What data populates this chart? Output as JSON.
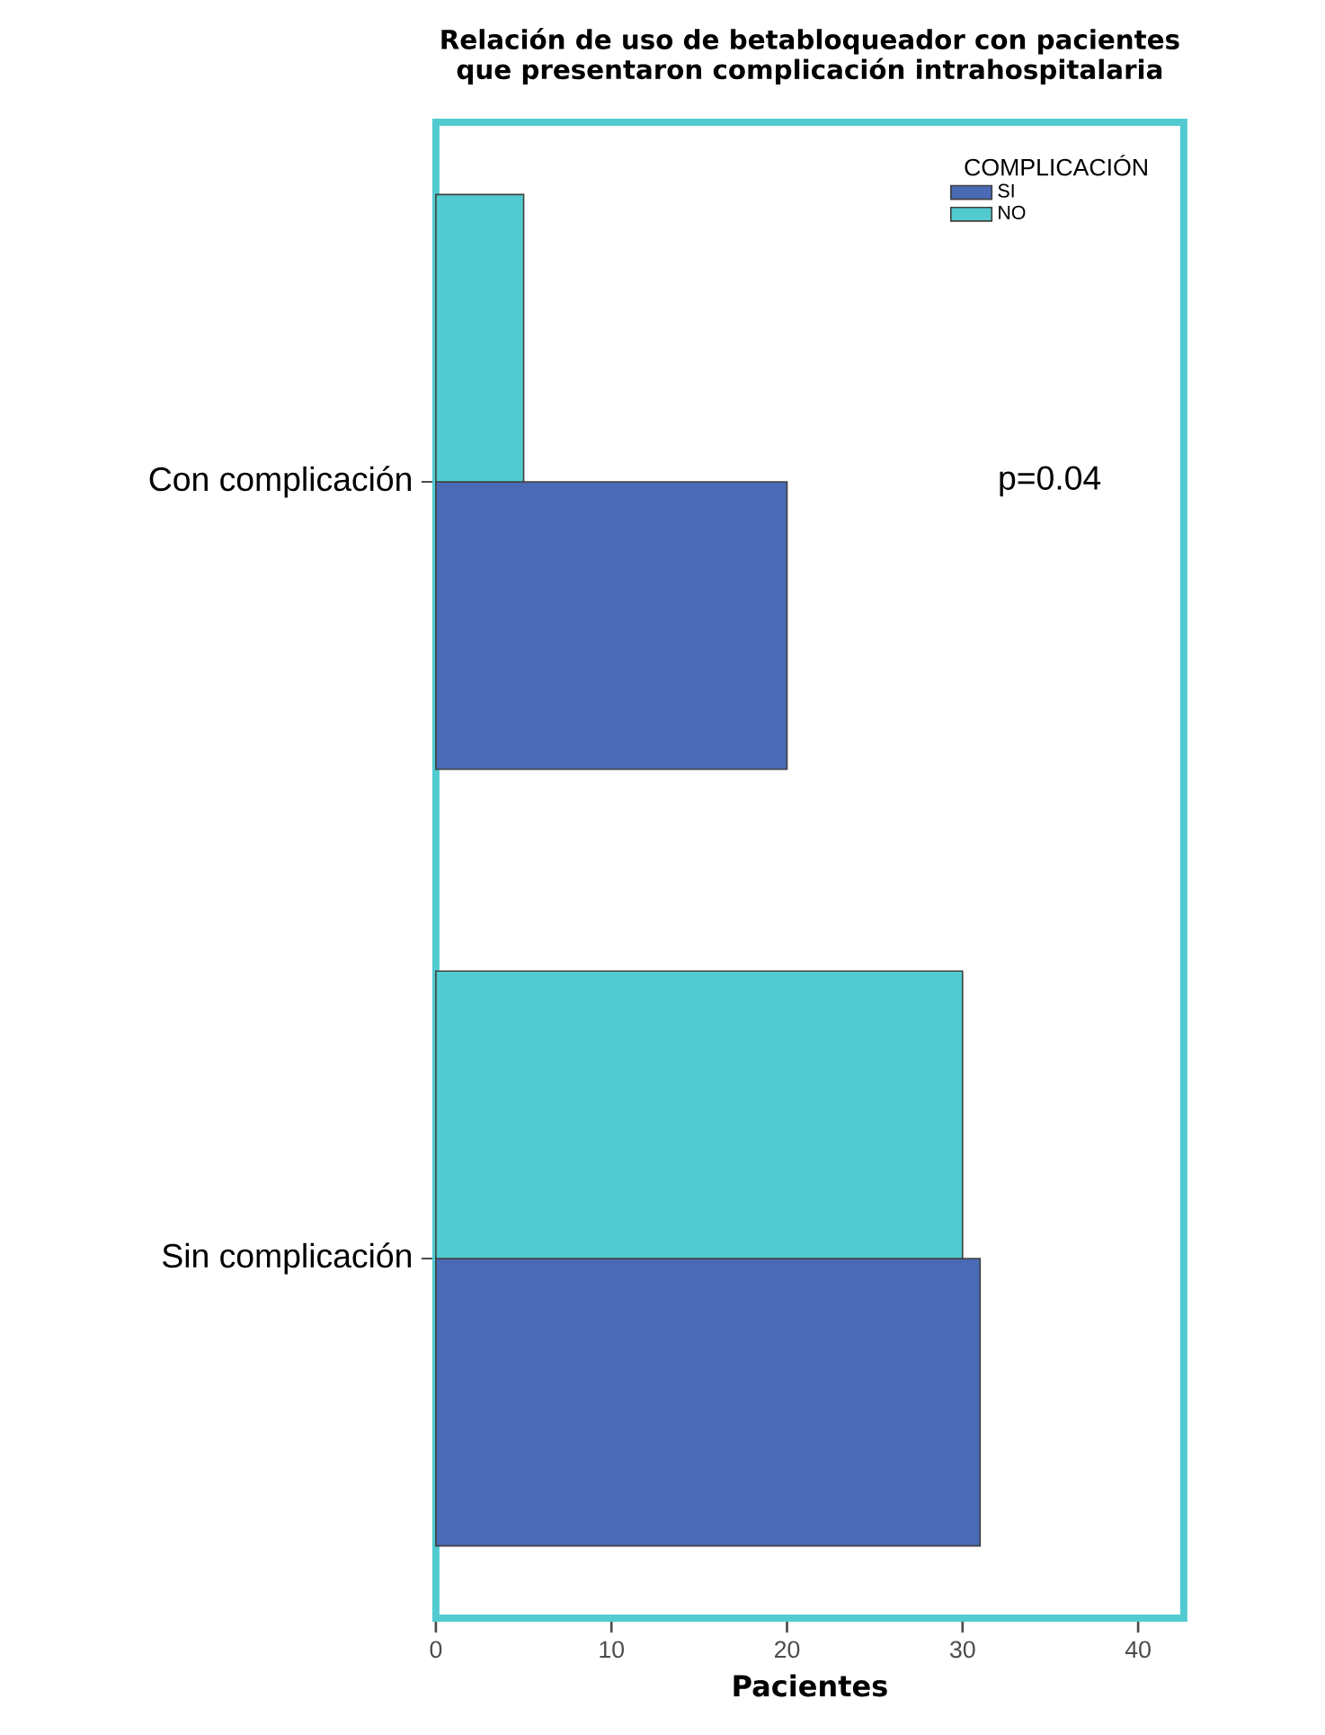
{
  "chart_data": {
    "type": "bar",
    "orientation": "horizontal",
    "title": "Relación de uso de betabloqueador con pacientes\nque presentaron complicación intrahospitalaria",
    "xlabel": "Pacientes",
    "legend_title": "COMPLICACIÓN",
    "categories": [
      "Con complicación",
      "Sin complicación"
    ],
    "series": [
      {
        "name": "SI",
        "color": "#4a6ab6",
        "values": [
          20,
          31
        ]
      },
      {
        "name": "NO",
        "color": "#52cbd0",
        "values": [
          5,
          30
        ]
      }
    ],
    "xlim": [
      0,
      42.6
    ],
    "xticks": [
      0,
      10,
      20,
      30,
      40
    ],
    "legend": "top right",
    "annotations": [
      "p=0.04"
    ]
  }
}
